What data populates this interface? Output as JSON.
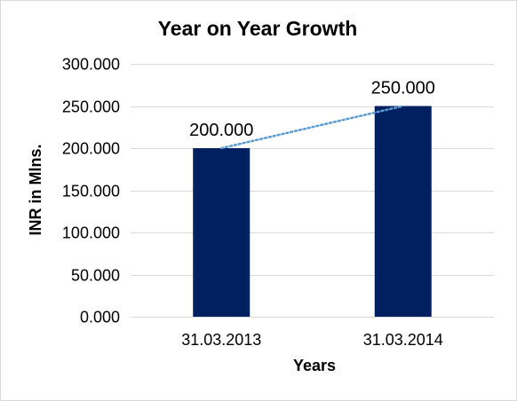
{
  "chart_data": {
    "type": "bar",
    "title": "Year on Year Growth",
    "xlabel": "Years",
    "ylabel": "INR in Mlns.",
    "categories": [
      "31.03.2013",
      "31.03.2014"
    ],
    "values": [
      200,
      250
    ],
    "data_labels": [
      "200.000",
      "250.000"
    ],
    "ylim": [
      0,
      300
    ],
    "yticks": [
      0,
      50,
      100,
      150,
      200,
      250,
      300
    ],
    "ytick_labels": [
      "0.000",
      "50.000",
      "100.000",
      "150.000",
      "200.000",
      "250.000",
      "300.000"
    ],
    "grid": true,
    "legend": "none",
    "trendline": "linear dotted",
    "colors": {
      "bar": "#002060",
      "trendline": "#5b9bd5",
      "grid": "#d9d9d9"
    }
  }
}
